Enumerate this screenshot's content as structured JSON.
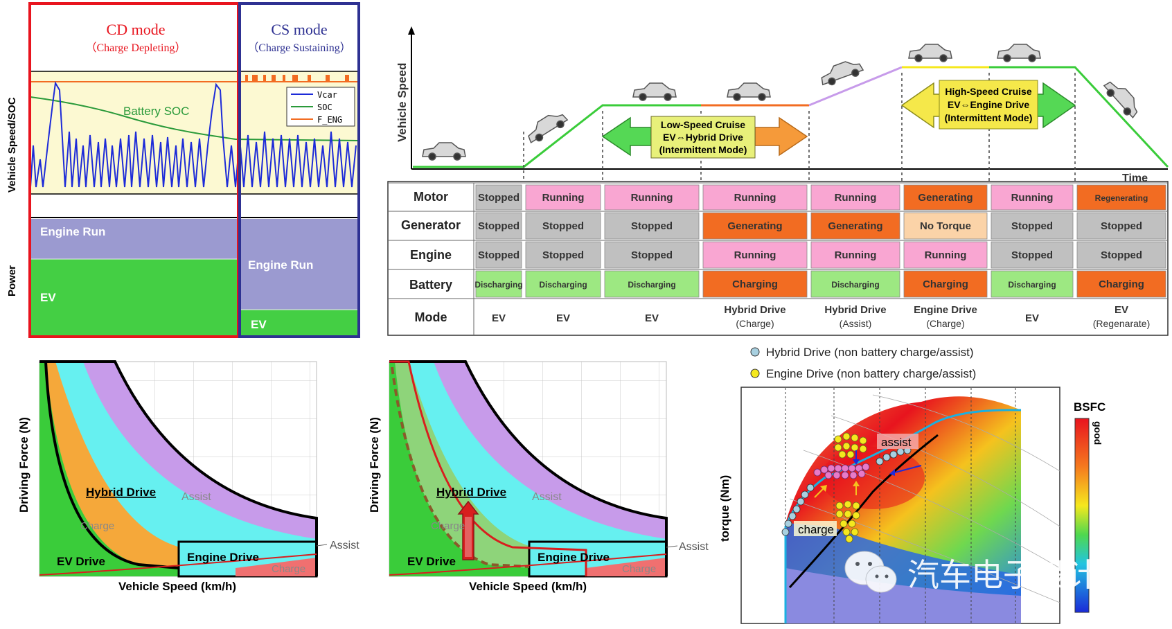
{
  "panel_cdcs": {
    "cd_title": "CD mode",
    "cd_sub": "（Charge Depleting）",
    "cs_title": "CS mode",
    "cs_sub": "（Charge Sustaining）",
    "ylabel_top": "Vehicle Speed/SOC",
    "ylabel_bottom": "Power",
    "battery_soc": "Battery SOC",
    "legend": [
      "Vcar",
      "SOC",
      "F_ENG"
    ],
    "engine_run": "Engine Run",
    "ev": "EV",
    "colors": {
      "cd_border": "#e8141e",
      "cs_border": "#2e3192",
      "engine_run": "#9b9ad0",
      "ev": "#44cf44",
      "plot_bg": "#fcf9d2"
    }
  },
  "panel_modes": {
    "ylabel": "Vehicle Speed",
    "xlabel": "Time",
    "low_speed": [
      "Low-Speed Cruise",
      "EV⇔Hybrid Drive",
      "(Intermittent Mode)"
    ],
    "high_speed": [
      "High-Speed Cruise",
      "EV⇔Engine Drive",
      "(Intermittent Mode)"
    ],
    "row_headers": [
      "Motor",
      "Generator",
      "Engine",
      "Battery",
      "Mode"
    ],
    "rows": [
      [
        "Stopped",
        "Running",
        "Running",
        "Running",
        "Running",
        "Generating",
        "Running",
        "Regenerating"
      ],
      [
        "Stopped",
        "Stopped",
        "Stopped",
        "Generating",
        "Generating",
        "No Torque",
        "Stopped",
        "Stopped"
      ],
      [
        "Stopped",
        "Stopped",
        "Stopped",
        "Running",
        "Running",
        "Running",
        "Stopped",
        "Stopped"
      ],
      [
        "Discharging",
        "Discharging",
        "Discharging",
        "Charging",
        "Discharging",
        "Charging",
        "Discharging",
        "Charging"
      ]
    ],
    "modes": [
      [
        "EV",
        ""
      ],
      [
        "EV",
        ""
      ],
      [
        "EV",
        ""
      ],
      [
        "Hybrid Drive",
        "(Charge)"
      ],
      [
        "Hybrid Drive",
        "(Assist)"
      ],
      [
        "Engine Drive",
        "(Charge)"
      ],
      [
        "EV",
        ""
      ],
      [
        "EV",
        "(Regenarate)"
      ]
    ],
    "colors": {
      "stopped": "#c0c0c0",
      "running": "#f9a6d2",
      "generating": "#f26c22",
      "no_torque": "#fbd3a8",
      "discharging": "#9de882",
      "charging": "#f26c22"
    }
  },
  "panel_force_left": {
    "ylabel": "Driving Force (N)",
    "xlabel": "Vehicle Speed (km/h)",
    "hybrid": "Hybrid Drive",
    "assist": "Assist",
    "charge": "Charge",
    "ev": "EV Drive",
    "engine": "Engine Drive",
    "charge2": "Charge",
    "assist_callout": "Assist"
  },
  "panel_force_right": {
    "ylabel": "Driving Force (N)",
    "xlabel": "Vehicle Speed (km/h)",
    "hybrid": "Hybrid Drive",
    "assist": "Assist",
    "charge": "Charge",
    "ev": "EV Drive",
    "engine": "Engine Drive",
    "charge2": "Charge",
    "assist_callout": "Assist"
  },
  "panel_bsfc": {
    "legend_hybrid": "Hybrid Drive (non battery charge/assist)",
    "legend_engine": "Engine Drive (non battery charge/assist)",
    "ylabel": "torque (Nm)",
    "bsfc": "BSFC",
    "good": "good",
    "assist": "assist",
    "charge": "charge",
    "watermark": "汽车电子设计"
  }
}
